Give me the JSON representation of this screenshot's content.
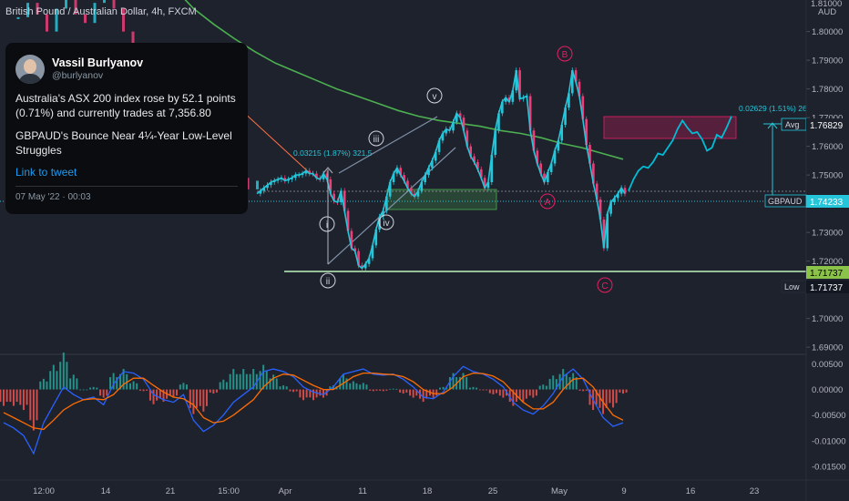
{
  "header": {
    "symbol_title": "British Pound / Australian Dollar, 4h, FXCM"
  },
  "tweet": {
    "name": "Vassil Burlyanov",
    "handle": "@burlyanov",
    "text1": "Australia's ASX 200 index rose by 52.1 points (0.71%) and currently trades at 7,356.80",
    "text2": "GBPAUD's Bounce Near 4¼-Year Low-Level Struggles",
    "link": "Link to tweet",
    "date": "07 May '22 · 00:03"
  },
  "chart_data": {
    "type": "line",
    "currency": "AUD",
    "price_axis": {
      "range": [
        1.6875,
        1.811
      ],
      "ticks": [
        "1.80000",
        "1.79000",
        "1.78000",
        "1.77000",
        "1.76000",
        "1.75000",
        "1.74000",
        "1.73000",
        "1.72000",
        "1.71000",
        "1.70000",
        "1.69000"
      ],
      "top_partial": "1.81000"
    },
    "price_labels": [
      {
        "text": "Avg",
        "value": "1.76829"
      },
      {
        "text": "GBPAUD",
        "value": "1.74233"
      },
      {
        "text": "",
        "value": "1.71737"
      },
      {
        "text": "Low",
        "value": "1.71737"
      }
    ],
    "time_axis": {
      "ticks": [
        "12:00",
        "14",
        "21",
        "15:00",
        "Apr",
        "11",
        "18",
        "25",
        "May",
        "9",
        "16",
        "23"
      ]
    },
    "support_level": 1.71737,
    "current_price": 1.74233,
    "average_target": 1.76829,
    "annotations": {
      "wave_up": "0.03215 (1.87%) 321.5",
      "projection": "0.02629 (1.51%) 26"
    },
    "wave_labels": [
      "i",
      "ii",
      "iii",
      "iv",
      "v",
      "A",
      "B",
      "C"
    ],
    "macd_axis": {
      "range": [
        -0.0175,
        0.0065
      ],
      "ticks": [
        "0.00500",
        "0.00000",
        "-0.00500",
        "-0.01000",
        "-0.01500"
      ]
    },
    "price_series": [
      1.7435,
      1.7445,
      1.7455,
      1.7465,
      1.7475,
      1.748,
      1.7485,
      1.749,
      1.748,
      1.7485,
      1.749,
      1.75,
      1.75,
      1.7505,
      1.7515,
      1.7505,
      1.7505,
      1.749,
      1.7485,
      1.7505,
      1.7485,
      1.7435,
      1.741,
      1.7405,
      1.7445,
      1.7375,
      1.7305,
      1.7245,
      1.7235,
      1.7185,
      1.7175,
      1.719,
      1.721,
      1.7255,
      1.731,
      1.7355,
      1.7375,
      1.7425,
      1.7475,
      1.7505,
      1.7525,
      1.75,
      1.748,
      1.7455,
      1.7435,
      1.7425,
      1.7445,
      1.7475,
      1.75,
      1.7525,
      1.755,
      1.758,
      1.762,
      1.7645,
      1.766,
      1.7655,
      1.7685,
      1.7715,
      1.77,
      1.7655,
      1.76,
      1.7565,
      1.7545,
      1.752,
      1.749,
      1.7455,
      1.7475,
      1.757,
      1.7655,
      1.7715,
      1.7755,
      1.777,
      1.7755,
      1.7795,
      1.7865,
      1.7765,
      1.777,
      1.7775,
      1.7655,
      1.7585,
      1.754,
      1.7505,
      1.7475,
      1.751,
      1.754,
      1.7585,
      1.762,
      1.7675,
      1.7735,
      1.7785,
      1.7865,
      1.7825,
      1.7775,
      1.7695,
      1.7605,
      1.754,
      1.747,
      1.7415,
      1.7345,
      1.7245,
      1.7365,
      1.7405,
      1.742,
      1.7435,
      1.7455,
      1.7435
    ],
    "projection_series": [
      1.7445,
      1.7485,
      1.7515,
      1.753,
      1.7525,
      1.7545,
      1.7575,
      1.757,
      1.7595,
      1.762,
      1.766,
      1.769,
      1.7665,
      1.7645,
      1.765,
      1.7625,
      1.7585,
      1.7595,
      1.764,
      1.763,
      1.7665,
      1.7705
    ],
    "moving_average_series": [
      1.8155,
      1.808,
      1.8025,
      1.7975,
      1.793,
      1.789,
      1.786,
      1.783,
      1.78,
      1.7775,
      1.775,
      1.7725,
      1.7705,
      1.769,
      1.768,
      1.767,
      1.7655,
      1.7645,
      1.763,
      1.761,
      1.7595,
      1.7575,
      1.7555
    ],
    "macd_line": [
      -0.0065,
      -0.0075,
      -0.009,
      -0.0125,
      -0.0065,
      -0.003,
      0.0005,
      -0.001,
      -0.002,
      -0.0015,
      -0.003,
      0.001,
      0.0035,
      0.0032,
      0.002,
      -0.001,
      -0.002,
      -0.0025,
      -0.001,
      -0.006,
      -0.0082,
      -0.007,
      -0.005,
      -0.0025,
      -0.001,
      0.0005,
      0.0035,
      0.004,
      0.0035,
      0.0025,
      0.0005,
      -0.0005,
      -0.001,
      0.0005,
      0.003,
      0.0035,
      0.004,
      0.003,
      0.0028,
      0.003,
      0.002,
      0.0005,
      -0.0015,
      -0.0018,
      -0.0005,
      0.0025,
      0.0045,
      0.0035,
      0.003,
      0.002,
      0.0005,
      -0.0025,
      -0.004,
      -0.0048,
      -0.0032,
      -0.0008,
      0.0025,
      0.004,
      0.002,
      -0.002,
      -0.0055,
      -0.0072,
      -0.0065
    ],
    "signal_line": [
      -0.0045,
      -0.0055,
      -0.0065,
      -0.0075,
      -0.0078,
      -0.006,
      -0.004,
      -0.0028,
      -0.002,
      -0.0018,
      -0.002,
      -0.001,
      0.001,
      0.0022,
      0.0022,
      0.0008,
      -0.0005,
      -0.0015,
      -0.0018,
      -0.003,
      -0.0055,
      -0.0065,
      -0.0062,
      -0.005,
      -0.0035,
      -0.002,
      0.0005,
      0.0022,
      0.003,
      0.0028,
      0.0018,
      0.0008,
      0,
      0,
      0.0012,
      0.0025,
      0.0032,
      0.0032,
      0.003,
      0.0029,
      0.0025,
      0.0015,
      0,
      -0.0008,
      -0.0008,
      0.0005,
      0.0025,
      0.0032,
      0.0031,
      0.0026,
      0.0015,
      -0.0005,
      -0.0025,
      -0.0038,
      -0.0038,
      -0.0025,
      0,
      0.002,
      0.0022,
      0.0005,
      -0.0025,
      -0.005,
      -0.006
    ],
    "colors": {
      "background": "#1e222d",
      "up": "#26c6da",
      "down": "#ec407a",
      "moving_average": "#4caf50",
      "projection": "#00bcd4",
      "macd_line": "#2962ff",
      "signal_line": "#ff6d00",
      "support": "#a5d6a7",
      "wave_abc": "#e91e63",
      "wave_impulse": "#d1d4dc"
    }
  }
}
